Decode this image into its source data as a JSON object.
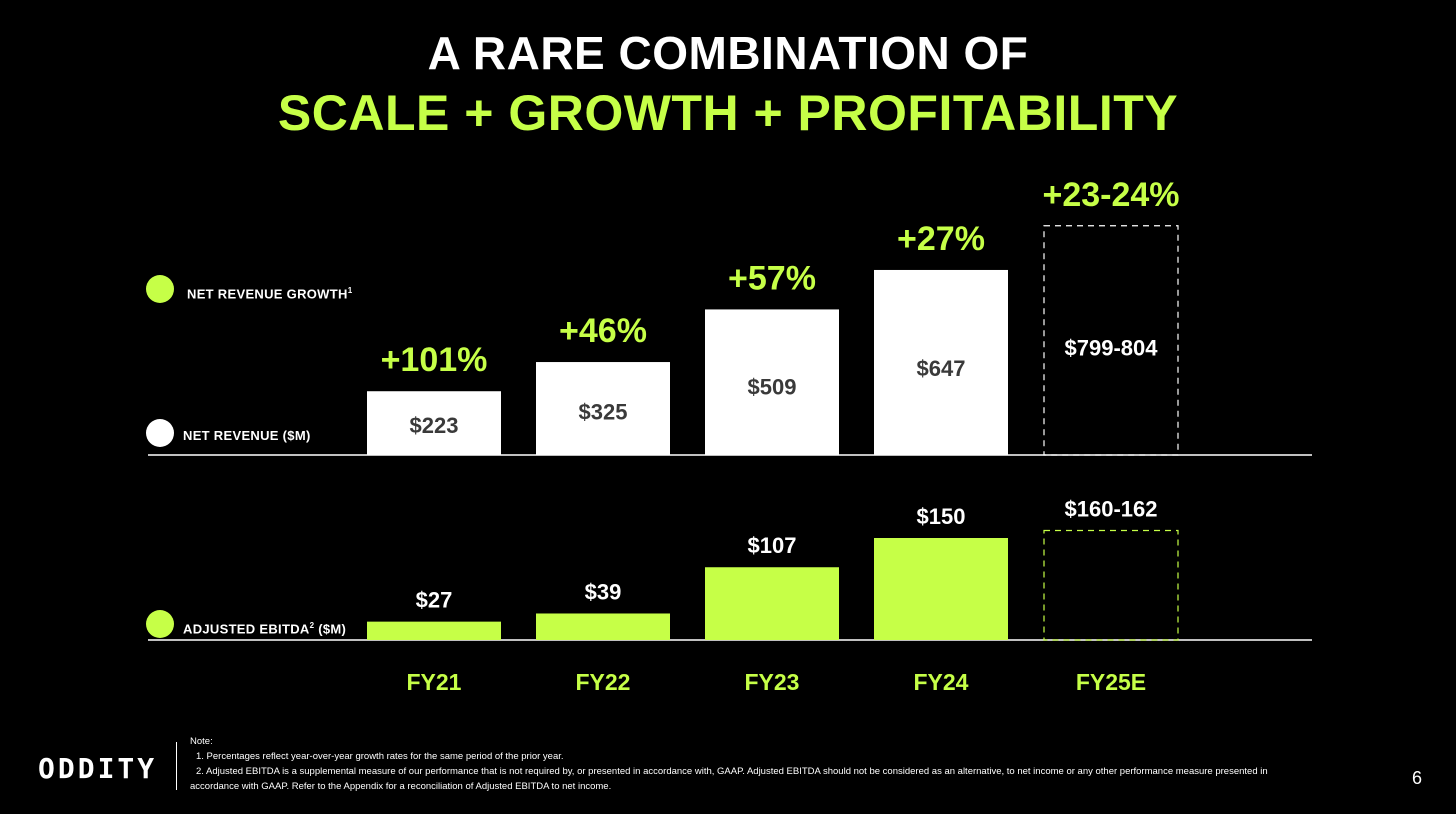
{
  "title": {
    "line1": "A RARE COMBINATION OF",
    "line2": "SCALE + GROWTH + PROFITABILITY"
  },
  "legend": {
    "growth_label": "NET REVENUE GROWTH",
    "growth_sup": "1",
    "revenue_label": "NET REVENUE ($M)",
    "ebitda_label": "ADJUSTED EBITDA",
    "ebitda_sup": "2",
    "ebitda_unit": " ($M)"
  },
  "colors": {
    "accent": "#c6ff47",
    "revenue_bar": "#ffffff",
    "background": "#000000",
    "revenue_label_text": "#3a3a3a"
  },
  "chart_data": {
    "type": "bar",
    "categories": [
      "FY21",
      "FY22",
      "FY23",
      "FY24",
      "FY25E"
    ],
    "series": [
      {
        "name": "Net Revenue ($M)",
        "values": [
          223,
          325,
          509,
          647,
          801.5
        ],
        "labels": [
          "$223",
          "$325",
          "$509",
          "$647",
          "$799-804"
        ],
        "estimate": [
          false,
          false,
          false,
          false,
          true
        ]
      },
      {
        "name": "Adjusted EBITDA ($M)",
        "values": [
          27,
          39,
          107,
          150,
          161
        ],
        "labels": [
          "$27",
          "$39",
          "$107",
          "$150",
          "$160-162"
        ],
        "estimate": [
          false,
          false,
          false,
          false,
          true
        ]
      }
    ],
    "growth_labels": [
      "+101%",
      "+46%",
      "+57%",
      "+27%",
      "+23-24%"
    ],
    "title": "A RARE COMBINATION OF SCALE + GROWTH + PROFITABILITY",
    "xlabel": "",
    "ylabel": ""
  },
  "footer": {
    "logo": "ODDITY",
    "note_title": "Note:",
    "note_1": "1. Percentages reflect year-over-year growth rates for the same period of the prior year.",
    "note_2a": "2. Adjusted EBITDA is a supplemental measure of our performance that is not required by, or presented in accordance with, GAAP. Adjusted EBITDA should not be considered as an alternative, to net income or any other performance measure presented in",
    "note_2b": "accordance with GAAP.  Refer to the Appendix for a reconciliation of Adjusted EBITDA to net income.",
    "page_number": "6"
  }
}
